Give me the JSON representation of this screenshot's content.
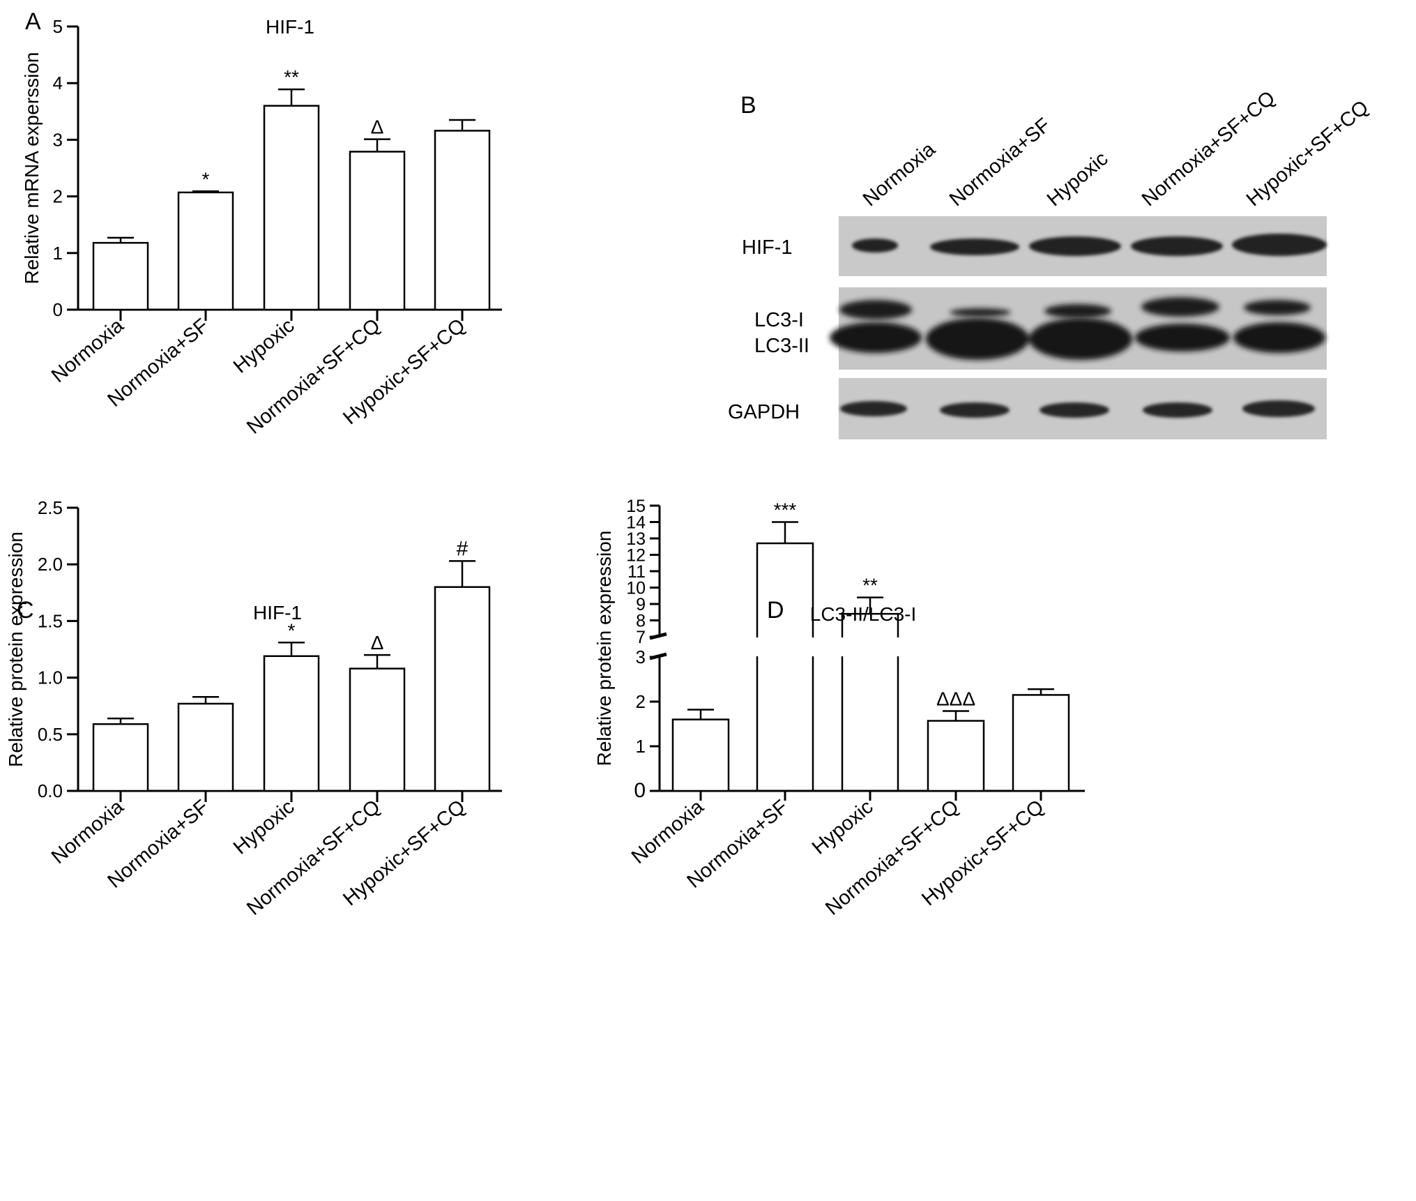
{
  "chart_data": [
    {
      "panel": "A",
      "type": "bar",
      "title": "HIF-1",
      "ylabel": "Relative mRNA experssion",
      "xlabel": "",
      "categories": [
        "Normoxia",
        "Normoxia+SF",
        "Hypoxic",
        "Normoxia+SF+CQ",
        "Hypoxic+SF+CQ"
      ],
      "values": [
        1.18,
        2.07,
        3.6,
        2.79,
        3.16
      ],
      "errors": [
        0.09,
        0.02,
        0.29,
        0.22,
        0.19
      ],
      "annotations": [
        "",
        "*",
        "**",
        "Δ",
        ""
      ],
      "ylim": [
        0,
        5
      ],
      "yticks": [
        "0",
        "1",
        "2",
        "3",
        "4",
        "5"
      ],
      "grid": false
    },
    {
      "panel": "C",
      "type": "bar",
      "title": "HIF-1",
      "ylabel": "Relative protein expression",
      "xlabel": "",
      "categories": [
        "Normoxia",
        "Normoxia+SF",
        "Hypoxic",
        "Normoxia+SF+CQ",
        "Hypoxic+SF+CQ"
      ],
      "values": [
        0.59,
        0.77,
        1.19,
        1.08,
        1.8
      ],
      "errors": [
        0.05,
        0.06,
        0.12,
        0.12,
        0.23
      ],
      "annotations": [
        "",
        "",
        "*",
        "Δ",
        "#"
      ],
      "ylim": [
        0,
        2.5
      ],
      "yticks": [
        "0.0",
        "0.5",
        "1.0",
        "1.5",
        "2.0",
        "2.5"
      ],
      "grid": false
    },
    {
      "panel": "D",
      "type": "bar",
      "title": "LC3-II/LC3-I",
      "ylabel": "Relative protein expression",
      "xlabel": "",
      "categories": [
        "Normoxia",
        "Normoxia+SF",
        "Hypoxic",
        "Normoxia+SF+CQ",
        "Hypoxic+SF+CQ"
      ],
      "values": [
        1.6,
        12.7,
        8.4,
        1.57,
        2.15
      ],
      "errors": [
        0.22,
        1.3,
        1.0,
        0.22,
        0.13
      ],
      "annotations": [
        "",
        "***",
        "**",
        "ΔΔΔ",
        ""
      ],
      "ylim": [
        0,
        15
      ],
      "axis_break": [
        3,
        7
      ],
      "yticks_lower": [
        "0",
        "1",
        "2",
        "3"
      ],
      "yticks_upper": [
        "7",
        "8",
        "9",
        "10",
        "11",
        "12",
        "13",
        "14",
        "15"
      ],
      "grid": false
    }
  ],
  "panels": {
    "a_letter": "A",
    "b_letter": "B",
    "c_letter": "C",
    "d_letter": "D"
  },
  "blot": {
    "lanes": [
      "Normoxia",
      "Normoxia+SF",
      "Hypoxic",
      "Normoxia+SF+CQ",
      "Hypoxic+SF+CQ"
    ],
    "row_labels": {
      "hif": "HIF-1",
      "lc3i": "LC3-I",
      "lc3ii": "LC3-II",
      "gapdh": "GAPDH"
    }
  }
}
